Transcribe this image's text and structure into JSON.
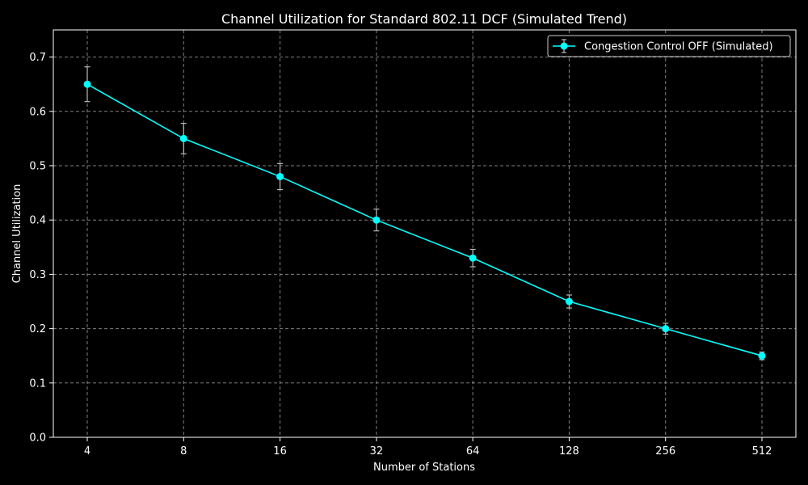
{
  "chart_data": {
    "type": "line",
    "title": "Channel Utilization for Standard 802.11 DCF (Simulated Trend)",
    "xlabel": "Number of Stations",
    "ylabel": "Channel Utilization",
    "categories": [
      "4",
      "8",
      "16",
      "32",
      "64",
      "128",
      "256",
      "512"
    ],
    "x": [
      4,
      8,
      16,
      32,
      64,
      128,
      256,
      512
    ],
    "x_scale": "log2",
    "ylim": [
      0,
      0.75
    ],
    "yticks": [
      0.0,
      0.1,
      0.2,
      0.3,
      0.4,
      0.5,
      0.6,
      0.7
    ],
    "ytick_labels": [
      "0.0",
      "0.1",
      "0.2",
      "0.3",
      "0.4",
      "0.5",
      "0.6",
      "0.7"
    ],
    "grid": true,
    "legend_position": "top-right",
    "series": [
      {
        "name": "Congestion Control OFF (Simulated)",
        "values": [
          0.65,
          0.55,
          0.48,
          0.4,
          0.33,
          0.25,
          0.2,
          0.15
        ],
        "errors": [
          0.032,
          0.028,
          0.024,
          0.02,
          0.016,
          0.012,
          0.01,
          0.007
        ],
        "color": "#00ffff",
        "errorbar_color": "#bbbbbb"
      }
    ],
    "colors": {
      "background": "#000000",
      "axes": "#ffffff",
      "grid": "#808080",
      "text": "#ffffff"
    }
  }
}
